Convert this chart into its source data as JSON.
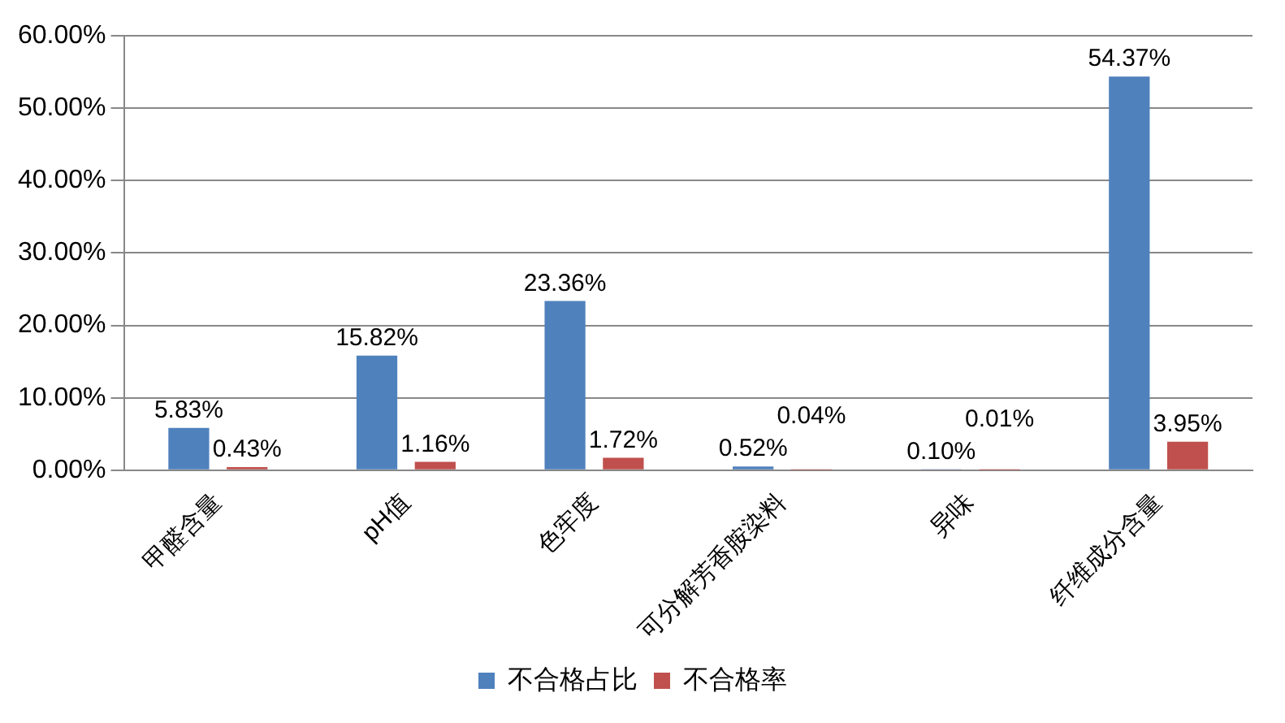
{
  "chart_data": {
    "type": "bar",
    "categories": [
      "甲醛含量",
      "pH值",
      "色牢度",
      "可分解芳香胺染料",
      "异味",
      "纤维成分含量"
    ],
    "series": [
      {
        "name": "不合格占比",
        "color": "#4f81bd",
        "values": [
          5.83,
          15.82,
          23.36,
          0.52,
          0.1,
          54.37
        ],
        "value_labels": [
          "5.83%",
          "15.82%",
          "23.36%",
          "0.52%",
          "0.10%",
          "54.37%"
        ]
      },
      {
        "name": "不合格率",
        "color": "#c0504d",
        "values": [
          0.43,
          1.16,
          1.72,
          0.04,
          0.01,
          3.95
        ],
        "value_labels": [
          "0.43%",
          "1.16%",
          "1.72%",
          "0.04%",
          "0.01%",
          "3.95%"
        ]
      }
    ],
    "ylim": [
      0,
      60
    ],
    "yticks": [
      {
        "value": 0,
        "label": "0.00%"
      },
      {
        "value": 10,
        "label": "10.00%"
      },
      {
        "value": 20,
        "label": "20.00%"
      },
      {
        "value": 30,
        "label": "30.00%"
      },
      {
        "value": 40,
        "label": "40.00%"
      },
      {
        "value": 50,
        "label": "50.00%"
      },
      {
        "value": 60,
        "label": "60.00%"
      }
    ],
    "grid": "y",
    "legend": "bottom"
  }
}
